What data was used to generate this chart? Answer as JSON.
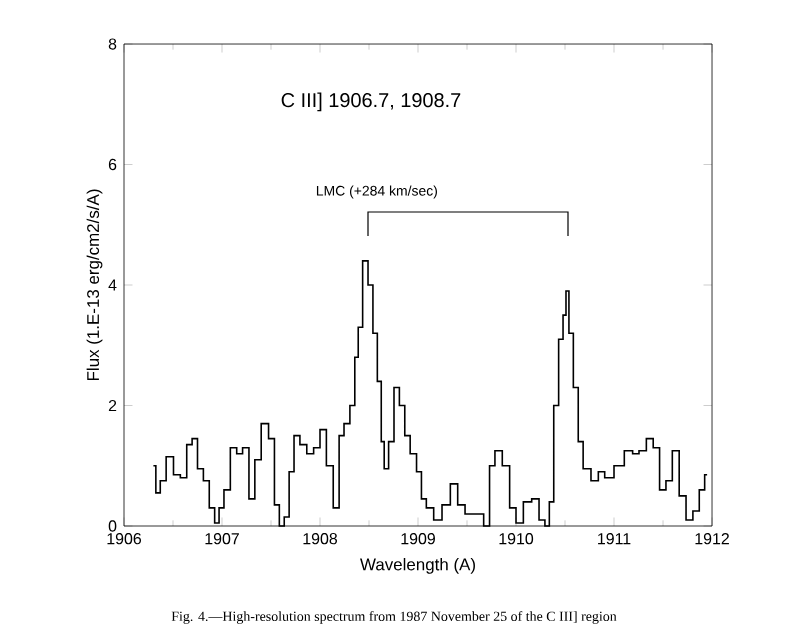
{
  "chart_data": {
    "type": "step",
    "title": "C III] 1906.7, 1908.7",
    "xlabel": "Wavelength (A)",
    "ylabel": "Flux (1.E-13 erg/cm2/s/A)",
    "annotations": [
      "LMC (+284 km/sec)",
      "Fig. 4.—High-resolution spectrum from 1987 November 25 of the C III] region"
    ],
    "xlim": [
      1906,
      1912
    ],
    "xticks": [
      1906,
      1907,
      1908,
      1909,
      1910,
      1911,
      1912
    ],
    "ylim": [
      0,
      8
    ],
    "yticks": [
      0,
      2,
      4,
      6,
      8
    ],
    "grid": false,
    "x": [
      1906.3,
      1906.35,
      1906.39,
      1906.47,
      1906.54,
      1906.61,
      1906.67,
      1906.72,
      1906.78,
      1906.84,
      1906.9,
      1906.95,
      1906.99,
      1907.05,
      1907.12,
      1907.18,
      1907.24,
      1907.31,
      1907.36,
      1907.44,
      1907.51,
      1907.56,
      1907.61,
      1907.66,
      1907.71,
      1907.76,
      1907.83,
      1907.9,
      1907.97,
      1908.03,
      1908.1,
      1908.17,
      1908.22,
      1908.27,
      1908.34,
      1908.37,
      1908.41,
      1908.46,
      1908.52,
      1908.56,
      1908.61,
      1908.64,
      1908.67,
      1908.73,
      1908.78,
      1908.84,
      1908.89,
      1908.95,
      1909.02,
      1909.05,
      1909.12,
      1909.2,
      1909.29,
      1909.37,
      1909.44,
      1909.52,
      1909.63,
      1909.71,
      1909.75,
      1909.82,
      1909.9,
      1909.97,
      1910.03,
      1910.12,
      1910.2,
      1910.27,
      1910.32,
      1910.36,
      1910.41,
      1910.46,
      1910.5,
      1910.52,
      1910.56,
      1910.61,
      1910.66,
      1910.71,
      1910.82,
      1910.86,
      1910.95,
      1911.05,
      1911.16,
      1911.22,
      1911.29,
      1911.37,
      1911.43,
      1911.5,
      1911.56,
      1911.63,
      1911.7,
      1911.77,
      1911.84,
      1911.9,
      1911.95
    ],
    "values": [
      1.0,
      0.55,
      0.75,
      1.15,
      0.85,
      0.8,
      1.35,
      1.45,
      0.95,
      0.75,
      0.3,
      0.05,
      0.3,
      0.6,
      1.3,
      1.2,
      1.3,
      0.45,
      1.1,
      1.7,
      1.45,
      0.35,
      0.0,
      0.15,
      0.9,
      1.5,
      1.35,
      1.2,
      1.3,
      1.6,
      1.0,
      0.3,
      1.5,
      1.7,
      2.0,
      2.8,
      3.3,
      4.4,
      4.0,
      3.2,
      2.4,
      1.4,
      0.95,
      1.4,
      2.3,
      2.0,
      1.5,
      1.2,
      0.9,
      0.45,
      0.3,
      0.1,
      0.35,
      0.7,
      0.35,
      0.2,
      0.2,
      0.0,
      1.0,
      1.25,
      1.0,
      0.3,
      0.05,
      0.4,
      0.45,
      0.1,
      0.0,
      0.4,
      2.0,
      3.1,
      3.5,
      3.9,
      3.2,
      2.3,
      1.4,
      0.95,
      0.75,
      0.9,
      0.8,
      1.0,
      1.25,
      1.2,
      1.25,
      1.45,
      1.3,
      0.6,
      0.75,
      1.25,
      0.5,
      0.1,
      0.25,
      0.6,
      0.85
    ],
    "color": "#000000"
  }
}
